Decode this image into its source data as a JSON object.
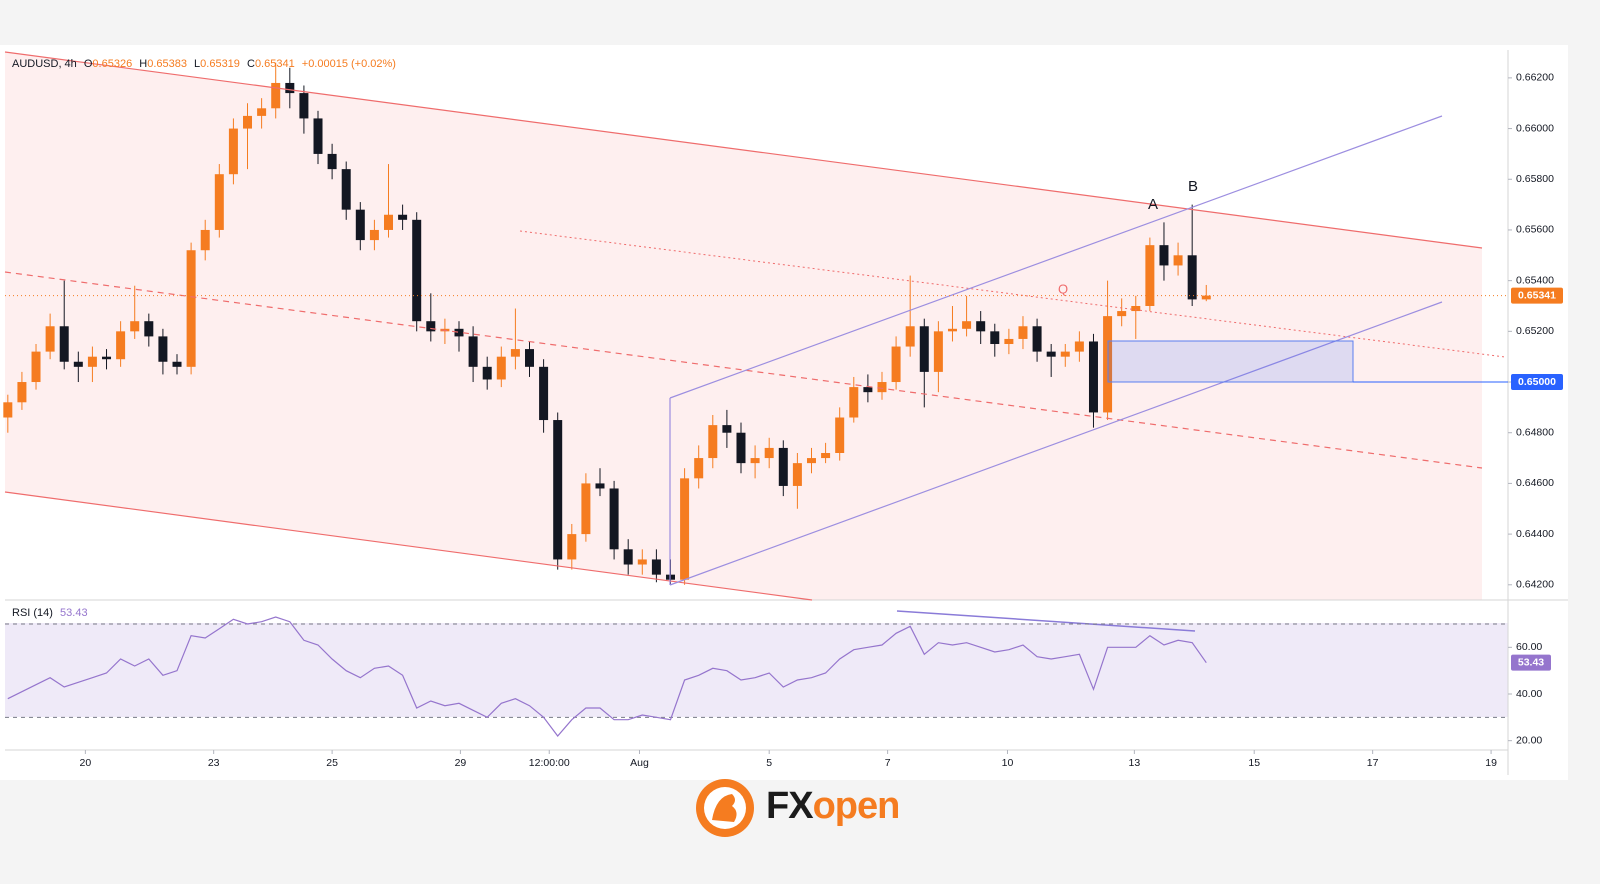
{
  "chart_data": {
    "type": "candlestick",
    "header": {
      "symbol": "AUDUSD, 4h",
      "ohlc": [
        {
          "label": "O",
          "value": "0.65326"
        },
        {
          "label": "H",
          "value": "0.65383"
        },
        {
          "label": "L",
          "value": "0.65319"
        },
        {
          "label": "C",
          "value": "0.65341"
        }
      ],
      "change": "+0.00015 (+0.02%)"
    },
    "x": [
      0,
      1,
      2,
      3,
      4,
      5,
      6,
      7,
      8,
      9,
      10,
      11,
      12,
      13,
      14,
      15,
      16,
      17,
      18,
      19,
      20,
      21,
      22,
      23,
      24,
      25,
      26,
      27,
      28,
      29,
      30,
      31,
      32,
      33,
      34,
      35,
      36,
      37,
      38,
      39,
      40,
      41,
      42,
      43,
      44,
      45,
      46,
      47,
      48,
      49,
      50,
      51,
      52,
      53,
      54,
      55,
      56,
      57,
      58,
      59,
      60,
      61,
      62,
      63,
      64,
      65,
      66,
      67,
      68,
      69,
      70,
      71,
      72,
      73,
      74,
      75,
      76,
      77,
      78,
      79,
      80,
      81,
      82,
      83,
      84,
      85
    ],
    "open": [
      0.6486,
      0.6492,
      0.65,
      0.6512,
      0.6522,
      0.6508,
      0.6506,
      0.651,
      0.6509,
      0.652,
      0.6524,
      0.6518,
      0.6508,
      0.6506,
      0.6552,
      0.656,
      0.6582,
      0.66,
      0.6605,
      0.6608,
      0.6618,
      0.6614,
      0.6604,
      0.659,
      0.6584,
      0.6568,
      0.6556,
      0.656,
      0.6566,
      0.6564,
      0.6524,
      0.652,
      0.6521,
      0.6518,
      0.6506,
      0.6501,
      0.651,
      0.6513,
      0.6506,
      0.6485,
      0.643,
      0.644,
      0.646,
      0.6458,
      0.6434,
      0.6428,
      0.643,
      0.6424,
      0.6422,
      0.6462,
      0.647,
      0.6483,
      0.648,
      0.6468,
      0.647,
      0.6474,
      0.6459,
      0.6468,
      0.647,
      0.6472,
      0.6486,
      0.6498,
      0.6496,
      0.65,
      0.6514,
      0.6522,
      0.6504,
      0.652,
      0.6521,
      0.6524,
      0.652,
      0.6515,
      0.6517,
      0.6522,
      0.6512,
      0.651,
      0.6512,
      0.6516,
      0.6488,
      0.6526,
      0.6528,
      0.653,
      0.6554,
      0.6546,
      0.655,
      0.65326
    ],
    "high": [
      0.6495,
      0.6504,
      0.6515,
      0.6527,
      0.654,
      0.6512,
      0.6514,
      0.6513,
      0.6524,
      0.6538,
      0.6527,
      0.6521,
      0.6511,
      0.6555,
      0.6564,
      0.6586,
      0.6604,
      0.661,
      0.6612,
      0.6626,
      0.6624,
      0.6617,
      0.6607,
      0.6594,
      0.6587,
      0.6571,
      0.6564,
      0.6586,
      0.657,
      0.6567,
      0.6535,
      0.6525,
      0.6524,
      0.6522,
      0.651,
      0.6514,
      0.6529,
      0.6516,
      0.6509,
      0.6488,
      0.6444,
      0.6464,
      0.6466,
      0.6461,
      0.6438,
      0.6434,
      0.6434,
      0.643,
      0.6466,
      0.6475,
      0.6487,
      0.6489,
      0.6484,
      0.6475,
      0.6478,
      0.6477,
      0.6472,
      0.6474,
      0.6476,
      0.649,
      0.6502,
      0.6503,
      0.6504,
      0.6518,
      0.6542,
      0.6525,
      0.6524,
      0.653,
      0.6534,
      0.6528,
      0.6523,
      0.6521,
      0.6526,
      0.6525,
      0.6515,
      0.6515,
      0.652,
      0.6519,
      0.654,
      0.6533,
      0.6534,
      0.6557,
      0.6563,
      0.6555,
      0.657,
      0.65383
    ],
    "low": [
      0.648,
      0.6489,
      0.6497,
      0.6509,
      0.6505,
      0.65,
      0.65,
      0.6505,
      0.6506,
      0.6517,
      0.6514,
      0.6503,
      0.6503,
      0.6503,
      0.6548,
      0.6557,
      0.6578,
      0.6584,
      0.66,
      0.6604,
      0.6608,
      0.6598,
      0.6586,
      0.658,
      0.6564,
      0.6552,
      0.6552,
      0.6557,
      0.656,
      0.652,
      0.6516,
      0.6515,
      0.6512,
      0.65,
      0.6497,
      0.6498,
      0.6505,
      0.6502,
      0.648,
      0.6426,
      0.6426,
      0.6437,
      0.6455,
      0.643,
      0.6424,
      0.6424,
      0.6421,
      0.642,
      0.642,
      0.6458,
      0.6466,
      0.6474,
      0.6464,
      0.6462,
      0.6466,
      0.6455,
      0.645,
      0.6464,
      0.6468,
      0.6469,
      0.6484,
      0.6492,
      0.6493,
      0.6497,
      0.651,
      0.649,
      0.6496,
      0.6516,
      0.6518,
      0.6515,
      0.651,
      0.6511,
      0.6513,
      0.6508,
      0.6502,
      0.6506,
      0.6508,
      0.6482,
      0.6485,
      0.6522,
      0.6517,
      0.6528,
      0.654,
      0.6542,
      0.653,
      0.65319
    ],
    "close": [
      0.6492,
      0.65,
      0.6512,
      0.6522,
      0.6508,
      0.6506,
      0.651,
      0.6509,
      0.652,
      0.6524,
      0.6518,
      0.6508,
      0.6506,
      0.6552,
      0.656,
      0.6582,
      0.66,
      0.6605,
      0.6608,
      0.6618,
      0.6614,
      0.6604,
      0.659,
      0.6584,
      0.6568,
      0.6556,
      0.656,
      0.6566,
      0.6564,
      0.6524,
      0.652,
      0.6521,
      0.6518,
      0.6506,
      0.6501,
      0.651,
      0.6513,
      0.6506,
      0.6485,
      0.643,
      0.644,
      0.646,
      0.6458,
      0.6434,
      0.6428,
      0.643,
      0.6424,
      0.6422,
      0.6462,
      0.647,
      0.6483,
      0.648,
      0.6468,
      0.647,
      0.6474,
      0.6459,
      0.6468,
      0.647,
      0.6472,
      0.6486,
      0.6498,
      0.6496,
      0.65,
      0.6514,
      0.6522,
      0.6504,
      0.652,
      0.6521,
      0.6524,
      0.652,
      0.6515,
      0.6517,
      0.6522,
      0.6512,
      0.651,
      0.6512,
      0.6516,
      0.6488,
      0.6526,
      0.6528,
      0.653,
      0.6554,
      0.6546,
      0.655,
      0.65326,
      0.65341
    ],
    "up_color": "#f57c20",
    "down_color": "#131722",
    "xlim": [
      -0.2,
      106.4
    ],
    "xticks": [
      {
        "value": 5.5,
        "label": "20"
      },
      {
        "value": 14.6,
        "label": "23"
      },
      {
        "value": 23.0,
        "label": "25"
      },
      {
        "value": 32.1,
        "label": "29"
      },
      {
        "value": 38.4,
        "label": "12:00:00"
      },
      {
        "value": 44.8,
        "label": "Aug"
      },
      {
        "value": 54.0,
        "label": "5"
      },
      {
        "value": 62.4,
        "label": "7"
      },
      {
        "value": 70.9,
        "label": "10"
      },
      {
        "value": 79.9,
        "label": "13"
      },
      {
        "value": 88.4,
        "label": "15"
      },
      {
        "value": 96.8,
        "label": "17"
      },
      {
        "value": 105.2,
        "label": "19"
      }
    ],
    "ylim": [
      0.6414,
      0.6631
    ],
    "yticks": [
      {
        "value": 0.642,
        "label": "0.64200"
      },
      {
        "value": 0.644,
        "label": "0.64400"
      },
      {
        "value": 0.646,
        "label": "0.64600"
      },
      {
        "value": 0.648,
        "label": "0.64800"
      },
      {
        "value": 0.65,
        "label": "0.65000"
      },
      {
        "value": 0.652,
        "label": "0.65200"
      },
      {
        "value": 0.654,
        "label": "0.65400"
      },
      {
        "value": 0.656,
        "label": "0.65600"
      },
      {
        "value": 0.658,
        "label": "0.65800"
      },
      {
        "value": 0.66,
        "label": "0.66000"
      },
      {
        "value": 0.662,
        "label": "0.66200"
      }
    ],
    "levels": [
      {
        "value": 0.65,
        "label": "0.65000",
        "color": "#2962ff"
      }
    ],
    "last_price": {
      "value": 0.65341,
      "label": "0.65341",
      "color": "#f57c20"
    },
    "annotations": [
      "A",
      "B",
      "Q"
    ],
    "rsi": {
      "label": "RSI (14)",
      "value_label": "53.43",
      "color": "#9575cd",
      "values": [
        38,
        41,
        44,
        47,
        43,
        45,
        47,
        49,
        55,
        52,
        55,
        48,
        50,
        65,
        64,
        68,
        72,
        70,
        71,
        73,
        71,
        63,
        61,
        55,
        50,
        47,
        51,
        52,
        48,
        34,
        37,
        35,
        36,
        33,
        30,
        36,
        38,
        35,
        30,
        22,
        29,
        34,
        34,
        29,
        29,
        31,
        30,
        29,
        46,
        48,
        51,
        50,
        46,
        47,
        49,
        43,
        46,
        47,
        49,
        55,
        59,
        60,
        61,
        66,
        69,
        57,
        62,
        61,
        62,
        60,
        58,
        59,
        61,
        56,
        55,
        56,
        57,
        42,
        60,
        60,
        60,
        65,
        61,
        63,
        62,
        53.43
      ],
      "ylim": [
        16,
        79
      ],
      "yticks": [
        {
          "value": 20,
          "label": "20.00"
        },
        {
          "value": 40,
          "label": "40.00"
        },
        {
          "value": 60,
          "label": "60.00"
        }
      ],
      "bands": [
        30,
        70
      ]
    },
    "logo_parts": [
      "FX",
      "open"
    ]
  }
}
